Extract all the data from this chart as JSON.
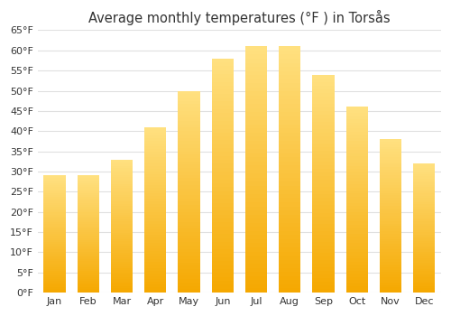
{
  "title": "Average monthly temperatures (°F ) in Torsås",
  "months": [
    "Jan",
    "Feb",
    "Mar",
    "Apr",
    "May",
    "Jun",
    "Jul",
    "Aug",
    "Sep",
    "Oct",
    "Nov",
    "Dec"
  ],
  "values": [
    29,
    29,
    33,
    41,
    50,
    58,
    61,
    61,
    54,
    46,
    38,
    32
  ],
  "ylim": [
    0,
    65
  ],
  "yticks": [
    0,
    5,
    10,
    15,
    20,
    25,
    30,
    35,
    40,
    45,
    50,
    55,
    60,
    65
  ],
  "bar_color_bottom": "#F5A800",
  "bar_color_top": "#FFD966",
  "background_color": "#ffffff",
  "grid_color": "#e0e0e0",
  "title_fontsize": 10.5,
  "tick_fontsize": 8
}
